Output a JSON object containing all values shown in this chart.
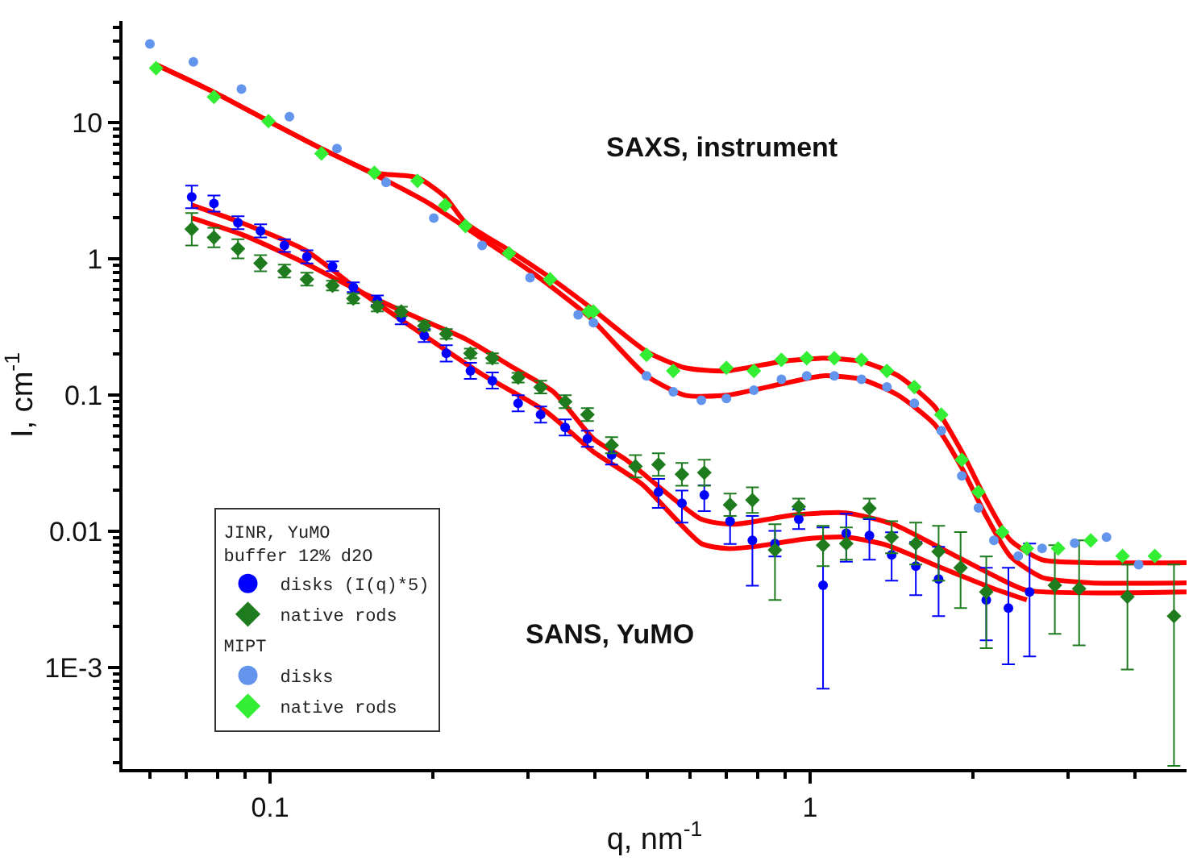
{
  "chart_data": {
    "type": "scatter",
    "xlabel": "q, nm$^{-1}$",
    "ylabel": "I, cm$^{-1}$",
    "log": "xy",
    "legend": "bottom left",
    "legend_title": [
      "JINR, YuMO\nbuffer 12% d2O",
      "MIPT"
    ],
    "xlim": [
      0.0533,
      4.98
    ],
    "ylim": [
      0.00018,
      56
    ],
    "xticks": [
      0.1,
      1
    ],
    "yticks": [
      {
        "value": 0.001,
        "label": "1E-3"
      },
      0.01,
      0.1,
      1,
      10
    ],
    "annotations": [
      "SAXS, instrument",
      "SANS, YuMO"
    ],
    "series": [
      {
        "name": "disks (I(q)*5)",
        "marker": "circle",
        "color": "#0000ff",
        "x": [
          0.0716,
          0.0787,
          0.0872,
          0.096,
          0.1063,
          0.117,
          0.1305,
          0.1426,
          0.158,
          0.175,
          0.193,
          0.212,
          0.235,
          0.258,
          0.288,
          0.317,
          0.352,
          0.387,
          0.429,
          0.524,
          0.579,
          0.637,
          0.711,
          0.782,
          0.861,
          0.953,
          1.057,
          1.167,
          1.288,
          1.416,
          1.57,
          1.73,
          2.12,
          2.33,
          2.55
        ],
        "values": [
          2.86,
          2.56,
          1.85,
          1.61,
          1.26,
          1.04,
          0.885,
          0.621,
          0.499,
          0.37,
          0.274,
          0.203,
          0.151,
          0.128,
          0.0873,
          0.0721,
          0.058,
          0.0479,
          0.0365,
          0.0195,
          0.0161,
          0.0185,
          0.0119,
          0.00861,
          0.00815,
          0.0123,
          0.00402,
          0.0097,
          0.00934,
          0.00673,
          0.00557,
          0.00448,
          0.00314,
          0.00274,
          0.0036
        ],
        "errors": [
          [
            2.36,
            3.46
          ],
          [
            2.23,
            2.93
          ],
          [
            1.66,
            2.06
          ],
          [
            1.44,
            1.8
          ],
          [
            1.13,
            1.4
          ],
          [
            0.93,
            1.16
          ],
          [
            0.816,
            0.96
          ],
          [
            0.572,
            0.674
          ],
          [
            0.46,
            0.541
          ],
          [
            0.332,
            0.413
          ],
          [
            0.246,
            0.306
          ],
          [
            0.177,
            0.233
          ],
          [
            0.132,
            0.173
          ],
          [
            0.112,
            0.147
          ],
          [
            0.0762,
            0.1
          ],
          [
            0.0629,
            0.0826
          ],
          [
            0.0506,
            0.0665
          ],
          [
            0.0418,
            0.0549
          ],
          [
            0.031,
            0.043
          ],
          [
            0.0149,
            0.0243
          ],
          [
            0.0116,
            0.02
          ],
          [
            0.0141,
            0.0218
          ],
          [
            0.0081,
            0.0156
          ],
          [
            0.004,
            0.013
          ],
          [
            0.00655,
            0.0101
          ],
          [
            0.0104,
            0.0145
          ],
          [
            0.0007,
            0.0107
          ],
          [
            0.006,
            0.0135
          ],
          [
            0.0062,
            0.0123
          ],
          [
            0.00435,
            0.00986
          ],
          [
            0.00341,
            0.00838
          ],
          [
            0.00239,
            0.00772
          ],
          [
            0.00159,
            0.00541
          ],
          [
            0.00106,
            0.00541
          ],
          [
            0.00121,
            0.00815
          ]
        ]
      },
      {
        "name": "native rods",
        "marker": "diamond",
        "color": "#1e7b1e",
        "x": [
          0.0716,
          0.0787,
          0.0872,
          0.096,
          0.1063,
          0.117,
          0.1305,
          0.1426,
          0.158,
          0.175,
          0.193,
          0.212,
          0.235,
          0.258,
          0.288,
          0.317,
          0.352,
          0.387,
          0.429,
          0.475,
          0.524,
          0.579,
          0.637,
          0.711,
          0.782,
          0.861,
          0.953,
          1.057,
          1.167,
          1.288,
          1.416,
          1.57,
          1.73,
          1.9,
          2.12,
          2.84,
          3.15,
          3.87,
          4.72
        ],
        "values": [
          1.66,
          1.44,
          1.19,
          0.933,
          0.815,
          0.711,
          0.638,
          0.513,
          0.448,
          0.412,
          0.323,
          0.282,
          0.203,
          0.187,
          0.135,
          0.1146,
          0.0897,
          0.0721,
          0.043,
          0.0301,
          0.031,
          0.0263,
          0.027,
          0.0157,
          0.017,
          0.00731,
          0.0152,
          0.00793,
          0.00815,
          0.0148,
          0.0091,
          0.00815,
          0.00711,
          0.00542,
          0.0036,
          0.00402,
          0.0038,
          0.00332,
          0.00239
        ],
        "errors": [
          [
            1.26,
            2.18
          ],
          [
            1.22,
            1.7
          ],
          [
            1.01,
            1.4
          ],
          [
            0.814,
            1.07
          ],
          [
            0.731,
            0.909
          ],
          [
            0.638,
            0.793
          ],
          [
            0.588,
            0.692
          ],
          [
            0.473,
            0.557
          ],
          [
            0.413,
            0.486
          ],
          [
            0.38,
            0.447
          ],
          [
            0.298,
            0.35
          ],
          [
            0.26,
            0.306
          ],
          [
            0.187,
            0.22
          ],
          [
            0.172,
            0.203
          ],
          [
            0.124,
            0.146
          ],
          [
            0.103,
            0.128
          ],
          [
            0.0804,
            0.1
          ],
          [
            0.0647,
            0.0804
          ],
          [
            0.0375,
            0.0493
          ],
          [
            0.0249,
            0.0364
          ],
          [
            0.0256,
            0.0375
          ],
          [
            0.0217,
            0.0318
          ],
          [
            0.0217,
            0.0336
          ],
          [
            0.013,
            0.019
          ],
          [
            0.0137,
            0.0211
          ],
          [
            0.00314,
            0.0113
          ],
          [
            0.0133,
            0.0174
          ],
          [
            0.00556,
            0.011
          ],
          [
            0.00621,
            0.0107
          ],
          [
            0.0126,
            0.0174
          ],
          [
            0.00693,
            0.0119
          ],
          [
            0.00572,
            0.0116
          ],
          [
            0.00435,
            0.011
          ],
          [
            0.00274,
            0.00988
          ],
          [
            0.00139,
            0.00656
          ],
          [
            0.00177,
            0.00794
          ],
          [
            0.00146,
            0.00861
          ],
          [
            0.00097,
            0.00572
          ],
          [
            0.00019,
            0.00572
          ]
        ]
      },
      {
        "name": "disks",
        "marker": "circle",
        "color": "#6495ed",
        "x": [
          0.0599,
          0.0721,
          0.0885,
          0.1086,
          0.133,
          0.164,
          0.201,
          0.247,
          0.303,
          0.372,
          0.397,
          0.498,
          0.558,
          0.629,
          0.7,
          0.787,
          0.885,
          0.986,
          1.109,
          1.245,
          1.388,
          1.56,
          1.75,
          1.91,
          2.05,
          2.19,
          2.43,
          2.69,
          3.09,
          3.54,
          4.06
        ],
        "values": [
          38,
          28,
          17.7,
          11.1,
          6.47,
          3.65,
          2.0,
          1.26,
          0.73,
          0.39,
          0.341,
          0.139,
          0.106,
          0.092,
          0.0947,
          0.109,
          0.131,
          0.139,
          0.139,
          0.131,
          0.115,
          0.0873,
          0.055,
          0.0256,
          0.0149,
          0.0086,
          0.0066,
          0.0075,
          0.0082,
          0.0091,
          0.0057
        ]
      },
      {
        "name": "native rods",
        "marker": "diamond",
        "color": "#33ee33",
        "x": [
          0.0615,
          0.0787,
          0.0993,
          0.1245,
          0.156,
          0.1875,
          0.211,
          0.23,
          0.277,
          0.33,
          0.389,
          0.397,
          0.498,
          0.558,
          0.7,
          0.787,
          0.885,
          0.986,
          1.109,
          1.245,
          1.388,
          1.56,
          1.75,
          1.91,
          2.05,
          2.27,
          2.52,
          2.88,
          3.31,
          3.79,
          4.35
        ],
        "values": [
          25.2,
          15.5,
          10.3,
          5.96,
          4.3,
          3.75,
          2.49,
          1.75,
          1.1,
          0.711,
          0.412,
          0.412,
          0.198,
          0.151,
          0.159,
          0.151,
          0.182,
          0.187,
          0.187,
          0.182,
          0.151,
          0.115,
          0.072,
          0.0336,
          0.0195,
          0.0099,
          0.0075,
          0.0075,
          0.0086,
          0.0066,
          0.0066
        ]
      },
      {
        "type": "line",
        "color": "#ff0000",
        "x": [
          0.0615,
          0.0787,
          0.0993,
          0.1245,
          0.156,
          0.197,
          0.247,
          0.309,
          0.389,
          0.498,
          0.587,
          0.7,
          0.885,
          1.057,
          1.245,
          1.456,
          1.7,
          1.91,
          2.12,
          2.35,
          2.69,
          3.31,
          4.98
        ],
        "values": [
          26.7,
          16.8,
          10.3,
          6.47,
          4.18,
          2.56,
          1.41,
          0.773,
          0.38,
          0.139,
          0.1,
          0.1,
          0.121,
          0.139,
          0.131,
          0.1,
          0.0612,
          0.0293,
          0.0129,
          0.00656,
          0.0046,
          0.0042,
          0.0042
        ]
      },
      {
        "type": "line",
        "color": "#ff0000",
        "x": [
          0.0615,
          0.0787,
          0.0993,
          0.1245,
          0.156,
          0.1875,
          0.211,
          0.23,
          0.277,
          0.33,
          0.397,
          0.498,
          0.587,
          0.7,
          0.885,
          1.057,
          1.245,
          1.456,
          1.7,
          1.91,
          2.12,
          2.35,
          2.69,
          3.31,
          4.98
        ],
        "values": [
          26.7,
          16.8,
          10.3,
          6.47,
          4.3,
          3.96,
          2.86,
          1.85,
          1.16,
          0.731,
          0.424,
          0.209,
          0.159,
          0.151,
          0.177,
          0.187,
          0.177,
          0.139,
          0.0826,
          0.0385,
          0.017,
          0.00861,
          0.0062,
          0.0059,
          0.0059
        ]
      },
      {
        "type": "line",
        "color": "#ff0000",
        "x": [
          0.0716,
          0.0885,
          0.1162,
          0.1476,
          0.1875,
          0.247,
          0.324,
          0.397,
          0.488,
          0.629,
          0.7,
          0.787,
          0.986,
          1.167,
          1.388,
          1.75,
          2.19,
          2.52
        ],
        "values": [
          2.49,
          1.85,
          1.16,
          0.571,
          0.297,
          0.1426,
          0.0762,
          0.0385,
          0.0223,
          0.00815,
          0.0075,
          0.00773,
          0.00885,
          0.0091,
          0.00793,
          0.00542,
          0.0038,
          0.00314
        ]
      },
      {
        "type": "line",
        "color": "#ff0000",
        "x": [
          0.0716,
          0.0885,
          0.1162,
          0.1476,
          0.1875,
          0.23,
          0.2825,
          0.335,
          0.397,
          0.456,
          0.629,
          0.72,
          0.947,
          1.167,
          1.426,
          1.75,
          2.19,
          2.52,
          4.98
        ],
        "values": [
          2.0,
          1.52,
          0.933,
          0.571,
          0.37,
          0.259,
          0.159,
          0.1057,
          0.0479,
          0.0337,
          0.0123,
          0.0113,
          0.0133,
          0.0137,
          0.0113,
          0.0075,
          0.00473,
          0.0037,
          0.0036
        ]
      }
    ]
  }
}
